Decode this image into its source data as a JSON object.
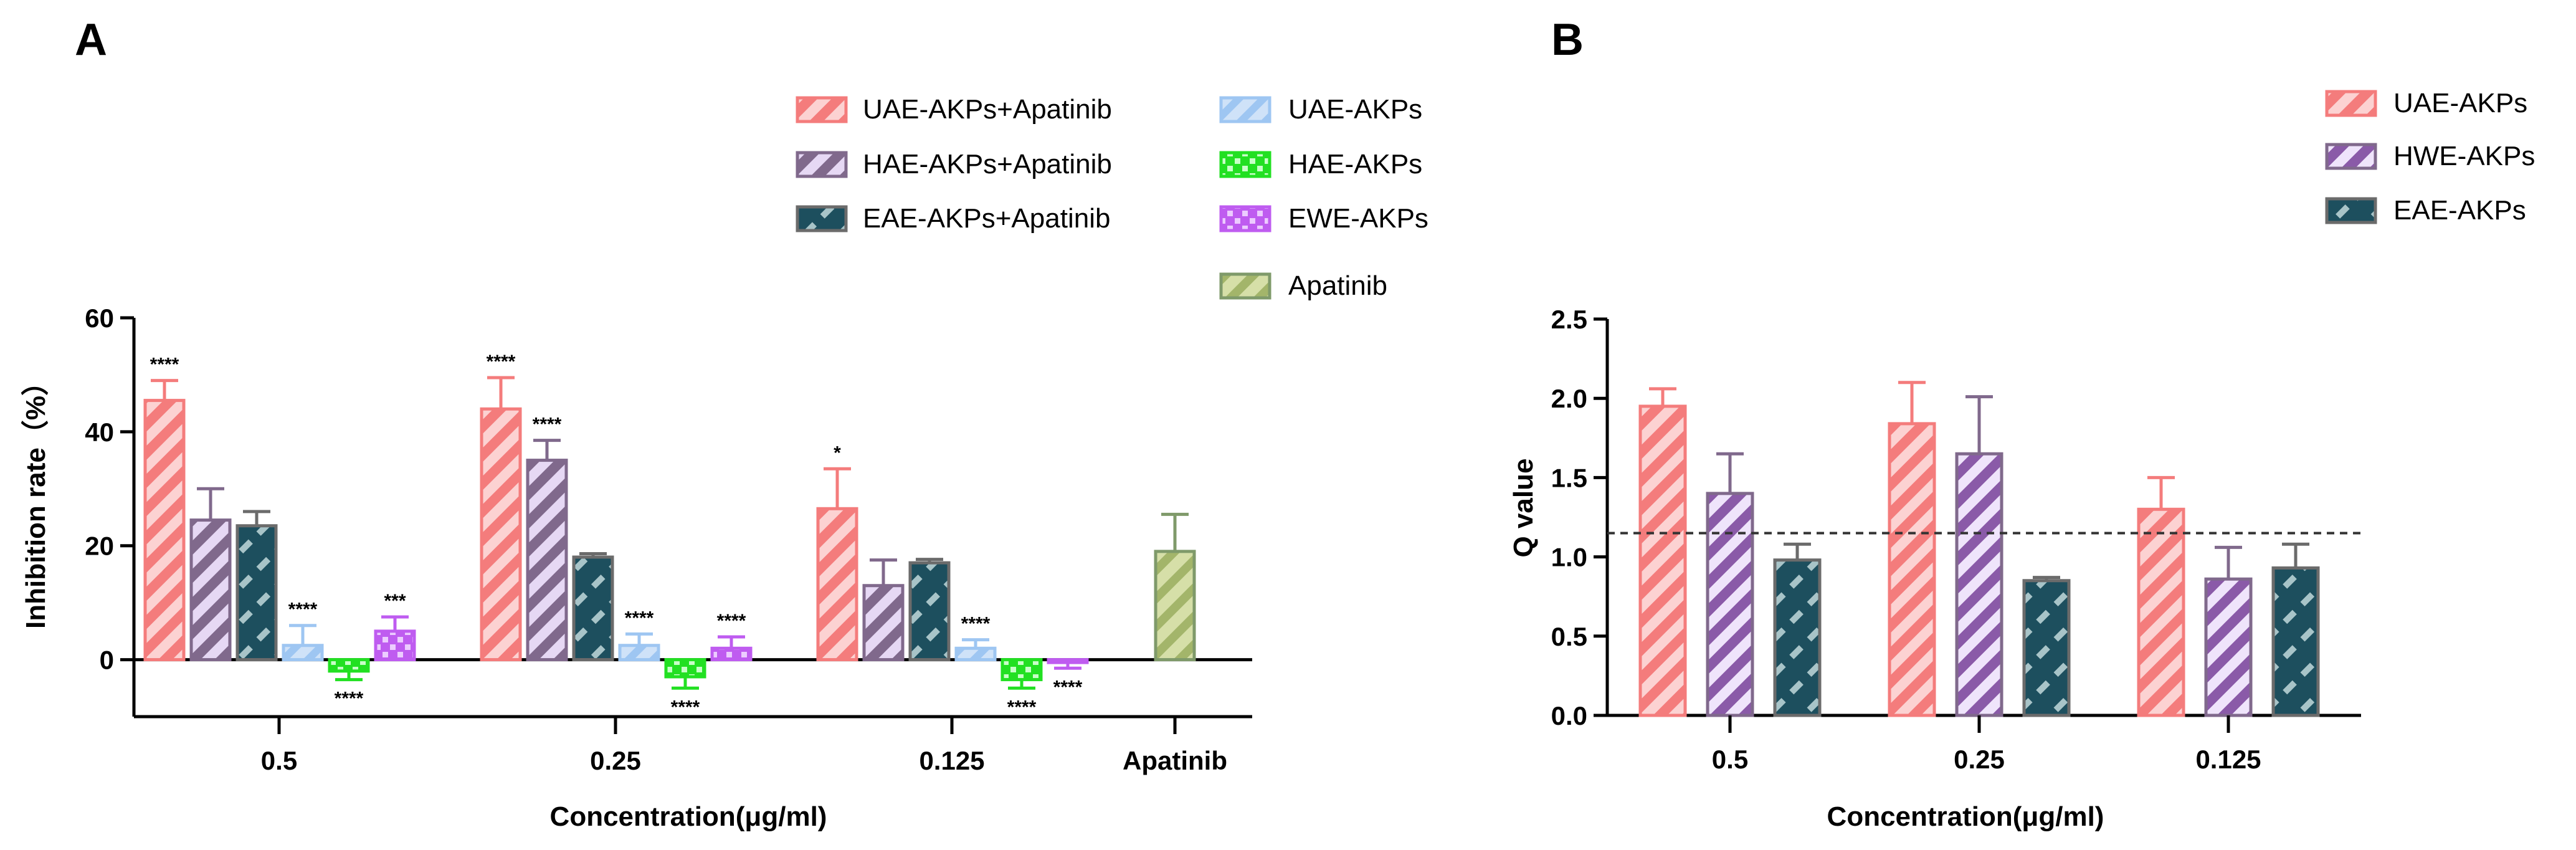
{
  "colors": {
    "uae": "#f47c7c",
    "hae": "#80698c",
    "eae": "#2a6070",
    "uae_only": "#9ec6f2",
    "hae_only": "#22e022",
    "ewe_only": "#bf5cf0",
    "apatinib": "#a3b56a",
    "hwe": "#b08fd0",
    "axis": "#000000"
  },
  "chart_data": [
    {
      "panel": "A",
      "type": "bar",
      "ylabel": "Inhibition rate（%）",
      "xlabel": "Concentration(μg/ml)",
      "ylim": [
        -10,
        60
      ],
      "yticks": [
        "60",
        "40",
        "20",
        "0"
      ],
      "categories": [
        "0.5",
        "0.25",
        "0.125",
        "Apatinib"
      ],
      "legend": {
        "col1": [
          "UAE-AKPs+Apatinib",
          "HAE-AKPs+Apatinib",
          "EAE-AKPs+Apatinib"
        ],
        "col2": [
          "UAE-AKPs",
          "HAE-AKPs",
          "EWE-AKPs",
          "Apatinib"
        ]
      },
      "series": [
        {
          "name": "UAE-AKPs+Apatinib",
          "values": [
            45.5,
            44,
            26.5,
            null
          ],
          "errors": [
            3.5,
            5.5,
            7,
            null
          ],
          "sig": [
            "****",
            "****",
            "*",
            null
          ]
        },
        {
          "name": "HAE-AKPs+Apatinib",
          "values": [
            24.5,
            35,
            13,
            null
          ],
          "errors": [
            5.5,
            3.5,
            4.5,
            null
          ],
          "sig": [
            null,
            "****",
            null,
            null
          ]
        },
        {
          "name": "EAE-AKPs+Apatinib",
          "values": [
            23.5,
            18,
            17,
            null
          ],
          "errors": [
            2.5,
            0.6,
            0.6,
            null
          ],
          "sig": [
            null,
            null,
            null,
            null
          ]
        },
        {
          "name": "UAE-AKPs",
          "values": [
            2.5,
            2.5,
            2,
            null
          ],
          "errors": [
            3.5,
            2,
            1.5,
            null
          ],
          "sig": [
            "****",
            "****",
            "****",
            null
          ]
        },
        {
          "name": "HAE-AKPs",
          "values": [
            -2,
            -3,
            -3.5,
            null
          ],
          "errors": [
            1.5,
            2,
            1.5,
            null
          ],
          "sig": [
            "****",
            "****",
            "****",
            null
          ]
        },
        {
          "name": "EWE-AKPs",
          "values": [
            5,
            2,
            -0.5,
            null
          ],
          "errors": [
            2.5,
            2,
            1,
            null
          ],
          "sig": [
            "***",
            "****",
            "****",
            null
          ]
        },
        {
          "name": "Apatinib",
          "values": [
            null,
            null,
            null,
            19
          ],
          "errors": [
            null,
            null,
            null,
            6.5
          ],
          "sig": [
            null,
            null,
            null,
            null
          ]
        }
      ]
    },
    {
      "panel": "B",
      "type": "bar",
      "ylabel": "Q value",
      "xlabel": "Concentration(μg/ml)",
      "ylim": [
        0,
        2.5
      ],
      "yticks": [
        "2.5",
        "2.0",
        "1.5",
        "1.0",
        "0.5",
        "0.0"
      ],
      "categories": [
        "0.5",
        "0.25",
        "0.125"
      ],
      "reference_line": 1.15,
      "legend": [
        "UAE-AKPs",
        "HWE-AKPs",
        "EAE-AKPs"
      ],
      "series": [
        {
          "name": "UAE-AKPs",
          "values": [
            1.95,
            1.84,
            1.3
          ],
          "errors": [
            0.11,
            0.26,
            0.2
          ]
        },
        {
          "name": "HWE-AKPs",
          "values": [
            1.4,
            1.65,
            0.86
          ],
          "errors": [
            0.25,
            0.36,
            0.2
          ]
        },
        {
          "name": "EAE-AKPs",
          "values": [
            0.98,
            0.85,
            0.93
          ],
          "errors": [
            0.1,
            0.02,
            0.15
          ]
        }
      ]
    }
  ]
}
